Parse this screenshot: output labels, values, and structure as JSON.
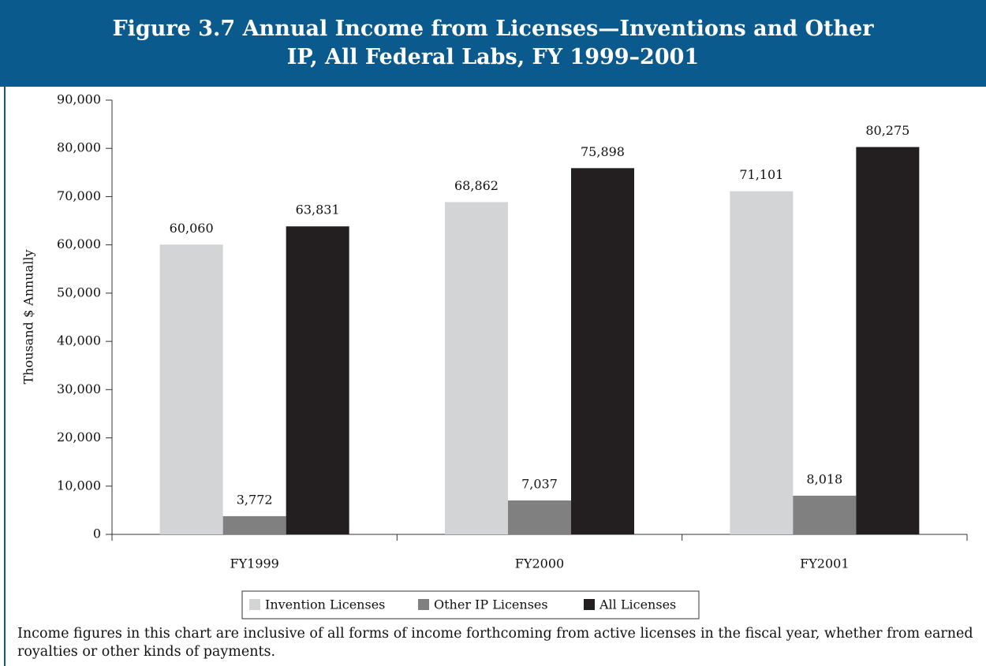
{
  "chart_data": {
    "type": "bar",
    "title": "Figure 3.7 Annual Income from Licenses—Inventions and Other IP, All Federal Labs, FY 1999–2001",
    "ylabel": "Thousand $ Annually",
    "categories": [
      "FY1999",
      "FY2000",
      "FY2001"
    ],
    "series": [
      {
        "name": "Invention Licenses",
        "color": "#d3d4d6",
        "values": [
          60060,
          68862,
          71101
        ],
        "value_labels": [
          "60,060",
          "68,862",
          "71,101"
        ]
      },
      {
        "name": "Other IP Licenses",
        "color": "#808080",
        "values": [
          3772,
          7037,
          8018
        ],
        "value_labels": [
          "3,772",
          "7,037",
          "8,018"
        ]
      },
      {
        "name": "All Licenses",
        "color": "#231f20",
        "values": [
          63831,
          75898,
          80275
        ],
        "value_labels": [
          "63,831",
          "75,898",
          "80,275"
        ]
      }
    ],
    "ylim": [
      0,
      90000
    ],
    "yticks": [
      0,
      {
        "value": 10000,
        "label": "10,000"
      },
      {
        "value": 20000,
        "label": "20,000"
      },
      {
        "value": 30000,
        "label": "30,000"
      },
      {
        "value": 40000,
        "label": "40,000"
      },
      {
        "value": 50000,
        "label": "50,000"
      },
      {
        "value": 60000,
        "label": "60,000"
      },
      {
        "value": 70000,
        "label": "70,000"
      },
      {
        "value": 80000,
        "label": "80,000"
      },
      {
        "value": 90000,
        "label": "90,000"
      }
    ],
    "legend": "bottom",
    "note": "Income figures in this chart are inclusive of all forms of income forthcoming from active licenses in the fiscal year, whether from earned royalties or other kinds of payments."
  }
}
